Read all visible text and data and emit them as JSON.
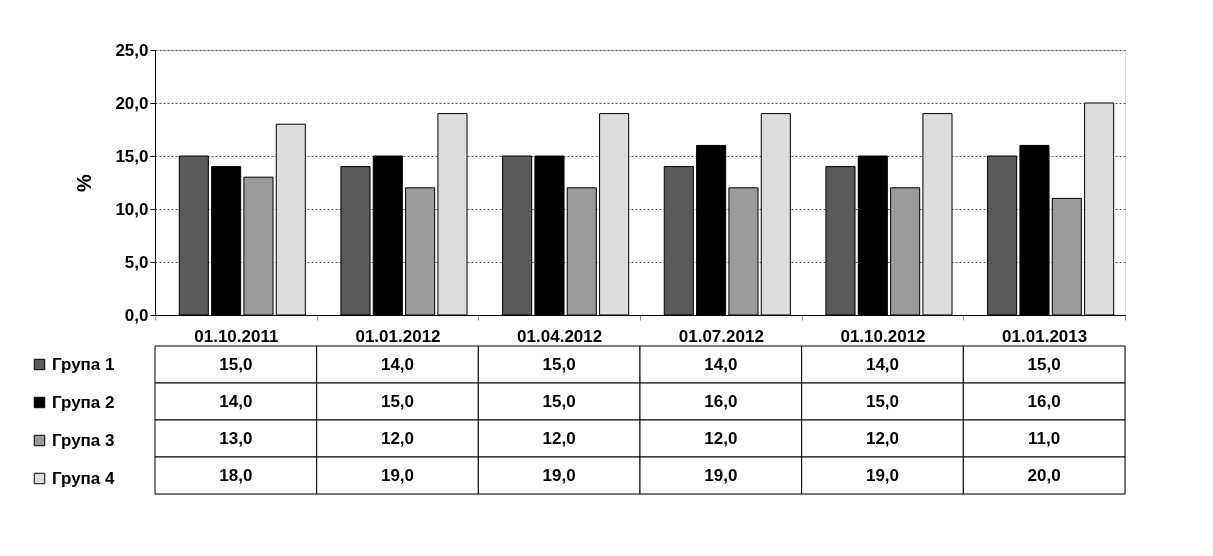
{
  "chart_data": {
    "type": "bar",
    "ylabel": "%",
    "categories": [
      "01.10.2011",
      "01.01.2012",
      "01.04.2012",
      "01.07.2012",
      "01.10.2012",
      "01.01.2013"
    ],
    "series": [
      {
        "name": "Група 1",
        "color": "#5a5a5a",
        "values": [
          15,
          14,
          15,
          14,
          14,
          15
        ],
        "value_labels": [
          "15,0",
          "14,0",
          "15,0",
          "14,0",
          "14,0",
          "15,0"
        ]
      },
      {
        "name": "Група 2",
        "color": "#000000",
        "values": [
          14,
          15,
          15,
          16,
          15,
          16
        ],
        "value_labels": [
          "14,0",
          "15,0",
          "15,0",
          "16,0",
          "15,0",
          "16,0"
        ]
      },
      {
        "name": "Група 3",
        "color": "#9a9a9a",
        "values": [
          13,
          12,
          12,
          12,
          12,
          11
        ],
        "value_labels": [
          "13,0",
          "12,0",
          "12,0",
          "12,0",
          "12,0",
          "11,0"
        ]
      },
      {
        "name": "Група 4",
        "color": "#dcdcdc",
        "values": [
          18,
          19,
          19,
          19,
          19,
          20
        ],
        "value_labels": [
          "18,0",
          "19,0",
          "19,0",
          "19,0",
          "19,0",
          "20,0"
        ]
      }
    ],
    "ylim": [
      0,
      25
    ],
    "yticks": [
      {
        "value": 0,
        "label": "0,0"
      },
      {
        "value": 5,
        "label": "5,0"
      },
      {
        "value": 10,
        "label": "10,0"
      },
      {
        "value": 15,
        "label": "15,0"
      },
      {
        "value": 20,
        "label": "20,0"
      },
      {
        "value": 25,
        "label": "25,0"
      }
    ],
    "grid": "y",
    "legend": "bottom"
  }
}
